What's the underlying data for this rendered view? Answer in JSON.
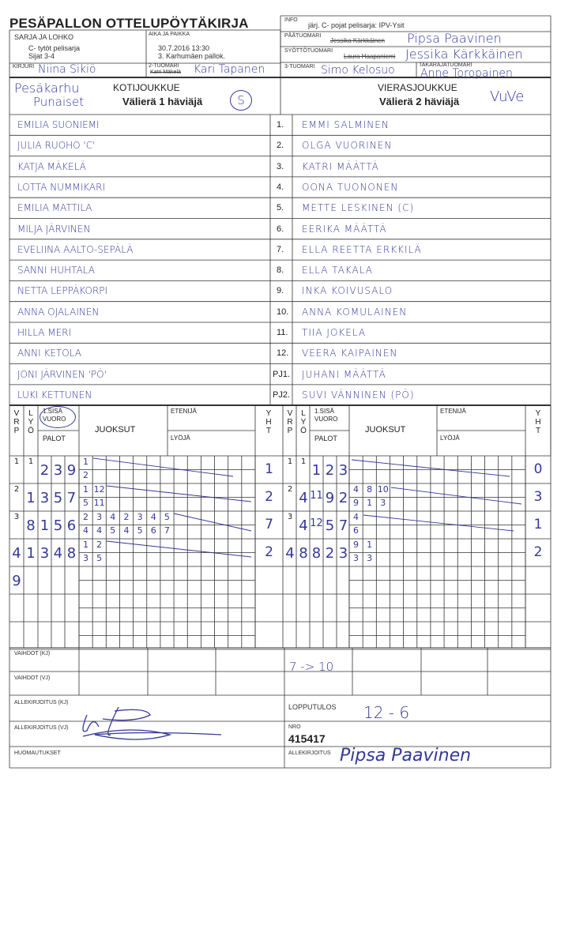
{
  "header": {
    "title": "PESÄPALLON OTTELUPÖYTÄKIRJA",
    "sarja_label": "SARJA JA LOHKO",
    "sarja_line1": "C- tytöt pelisarja",
    "sarja_line2": "Sijat 3-4",
    "aika_label": "AIKA JA PAIKKA",
    "aika_line1": "30.7.2016 13:30",
    "aika_line2": "3. Karhumäen pallok.",
    "kirjuri_label": "KIRJURI",
    "kirjuri_value": "Niina Sikiö",
    "tuomari2_label": "2-TUOMARI",
    "tuomari2_struck": "Katri Mäkelä",
    "tuomari2_value": "Kari Tapanen",
    "info_label": "INFO",
    "info_value": "järj. C- pojat pelisarja: IPV-Ysit",
    "paatuomari_label": "PÄÄTUOMARI",
    "paatuomari_struck": "Jessika Kärkkäinen",
    "paatuomari_value": "Pipsa Paavinen",
    "syotto_label": "SYÖTTÖTUOMARI",
    "syotto_struck": "Laura Haapaniemi",
    "syotto_value": "Jessika Kärkkäinen",
    "tuomari3_label": "3-TUOMARI",
    "tuomari3_value": "Simo Kelosuo",
    "takaraja_label": "TAKARAJATUOMARI",
    "takaraja_value": "Anne Toropainen"
  },
  "home": {
    "label": "KOTIJOUKKUE",
    "subtitle": "Välierä 1 häviäjä",
    "team_line1": "Pesäkarhu",
    "team_line2": "Punaiset",
    "mark": "S",
    "players": [
      "EMILIA SUONIEMI",
      "JULIA RUOHO 'C'",
      "KATJA MÄKELÄ",
      "LOTTA NUMMIKARI",
      "EMILIA MATTILA",
      "MILJA JÄRVINEN",
      "EVELIINA AALTO-SEPÄLÄ",
      "SANNI HUHTALA",
      "NETTA LEPPÄKORPI",
      "ANNA OJALAINEN",
      "HILLA MERI",
      "ANNI KETOLA",
      "JONI JÄRVINEN 'PÖ'",
      "LUKI KETTUNEN"
    ]
  },
  "away": {
    "label": "VIERASJOUKKUE",
    "subtitle": "Välierä 2 häviäjä",
    "team": "VuVe",
    "players": [
      "EMMI SALMINEN",
      "OLGA VUORINEN",
      "KATRI MÄÄTTÄ",
      "OONA TUONONEN",
      "METTE LESKINEN (C)",
      "EERIKA MÄÄTTÄ",
      "ELLA REETTA ERKKILÄ",
      "ELLA TAKALA",
      "INKA KOIVUSALO",
      "ANNA KOMULAINEN",
      "TIIA JOKELA",
      "VEERA KAIPAINEN",
      "JUHANI MÄÄTTÄ",
      "SUVI VÄNNINEN (PÖ)"
    ]
  },
  "roster_numbers": [
    "1.",
    "2.",
    "3.",
    "4.",
    "5.",
    "6.",
    "7.",
    "8.",
    "9.",
    "10.",
    "11.",
    "12.",
    "PJ1.",
    "PJ2."
  ],
  "grid_header": {
    "v": "V\nR\nP",
    "l": "L\nY\nÖ",
    "sisa": "1.SISÄ",
    "vuoro": "VUORO",
    "palot": "PALOT",
    "juoksut": "JUOKSUT",
    "etenija": "ETENIJÄ",
    "lyoja": "LYÖJÄ",
    "yht": "Y\nH\nT"
  },
  "home_innings": [
    {
      "vrp": "1",
      "lyo": "1",
      "palot": [
        "2",
        "3",
        "9"
      ],
      "runs_top": [
        "1"
      ],
      "runs_bottom": [
        "2"
      ],
      "yht": "1"
    },
    {
      "vrp": "2",
      "lyo": "1",
      "palot": [
        "3",
        "5",
        "7"
      ],
      "runs_top": [
        "1",
        "12"
      ],
      "runs_bottom": [
        "5",
        "11"
      ],
      "yht": "2"
    },
    {
      "vrp": "3",
      "lyo": "8",
      "palot": [
        "1",
        "5",
        "6"
      ],
      "runs_top": [
        "2",
        "3",
        "4",
        "2",
        "3",
        "4",
        "5"
      ],
      "runs_bottom": [
        "4",
        "4",
        "5",
        "4",
        "5",
        "6",
        "7"
      ],
      "yht": "7"
    },
    {
      "vrp": "4",
      "lyo": "1",
      "palot": [
        "3",
        "4",
        "8"
      ],
      "runs_top": [
        "1",
        "2"
      ],
      "runs_bottom": [
        "3",
        "5"
      ],
      "yht": "2"
    },
    {
      "vrp": "9",
      "lyo": "",
      "palot": [
        "",
        "",
        ""
      ],
      "runs_top": [],
      "runs_bottom": [],
      "yht": ""
    }
  ],
  "away_innings": [
    {
      "vrp": "1",
      "lyo": "1",
      "palot": [
        "1",
        "2",
        "3"
      ],
      "runs_top": [],
      "runs_bottom": [],
      "yht": "0"
    },
    {
      "vrp": "2",
      "lyo": "4",
      "palot": [
        "11",
        "9",
        "2"
      ],
      "runs_top": [
        "4",
        "8",
        "10"
      ],
      "runs_bottom": [
        "9",
        "1",
        "3"
      ],
      "yht": "3"
    },
    {
      "vrp": "3",
      "lyo": "4",
      "palot": [
        "12",
        "5",
        "7"
      ],
      "runs_top": [
        "4"
      ],
      "runs_bottom": [
        "6"
      ],
      "yht": "1"
    },
    {
      "vrp": "4",
      "lyo": "8",
      "palot": [
        "8",
        "2",
        "3"
      ],
      "runs_top": [
        "9",
        "1"
      ],
      "runs_bottom": [
        "3",
        "3"
      ],
      "yht": "2"
    }
  ],
  "footer": {
    "vaihdot_kj": "VAIHDOT (KJ)",
    "vaihdot_kj_entry": "7 -> 10",
    "vaihdot_vj": "VAIHDOT (VJ)",
    "allekirjoitus_kj": "ALLEKIRJOITUS (KJ)",
    "allekirjoitus_vj": "ALLEKIRJOITUS (VJ)",
    "huomautukset": "HUOMAUTUKSET",
    "lopputulos_label": "LOPPUTULOS",
    "lopputulos_value": "12 - 6",
    "nro_label": "NRO",
    "nro_value": "415417",
    "allekirjoitus": "ALLEKIRJOITUS",
    "signature_main": "Pipsa Paavinen"
  },
  "colors": {
    "ink": "#34389a",
    "print": "#222222"
  }
}
